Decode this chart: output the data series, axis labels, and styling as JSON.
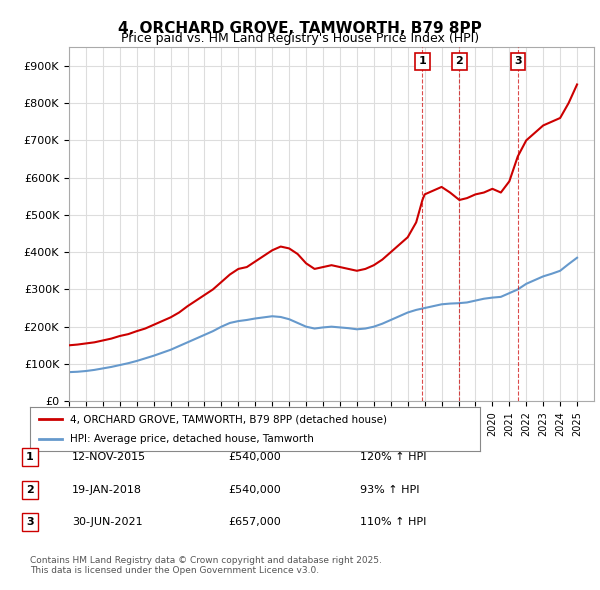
{
  "title": "4, ORCHARD GROVE, TAMWORTH, B79 8PP",
  "subtitle": "Price paid vs. HM Land Registry's House Price Index (HPI)",
  "ylabel": "",
  "background_color": "#ffffff",
  "plot_bg_color": "#ffffff",
  "grid_color": "#dddddd",
  "red_line_color": "#cc0000",
  "blue_line_color": "#6699cc",
  "transaction_line_color": "#cc0000",
  "marker_border_color": "#cc0000",
  "ylim": [
    0,
    950000
  ],
  "yticks": [
    0,
    100000,
    200000,
    300000,
    400000,
    500000,
    600000,
    700000,
    800000,
    900000
  ],
  "ytick_labels": [
    "£0",
    "£100K",
    "£200K",
    "£300K",
    "£400K",
    "£500K",
    "£600K",
    "£700K",
    "£800K",
    "£900K"
  ],
  "xlim_start": 1995.0,
  "xlim_end": 2026.0,
  "transactions": [
    {
      "year": 2015.87,
      "price": 540000,
      "label": "1",
      "pct": "120% ↑ HPI",
      "date": "12-NOV-2015"
    },
    {
      "year": 2018.05,
      "price": 540000,
      "label": "2",
      "pct": "93% ↑ HPI",
      "date": "19-JAN-2018"
    },
    {
      "year": 2021.5,
      "price": 657000,
      "label": "3",
      "pct": "110% ↑ HPI",
      "date": "30-JUN-2021"
    }
  ],
  "legend_property": "4, ORCHARD GROVE, TAMWORTH, B79 8PP (detached house)",
  "legend_hpi": "HPI: Average price, detached house, Tamworth",
  "footer_line1": "Contains HM Land Registry data © Crown copyright and database right 2025.",
  "footer_line2": "This data is licensed under the Open Government Licence v3.0.",
  "red_x": [
    1995.0,
    1995.5,
    1996.0,
    1996.5,
    1997.0,
    1997.5,
    1998.0,
    1998.5,
    1999.0,
    1999.5,
    2000.0,
    2000.5,
    2001.0,
    2001.5,
    2002.0,
    2002.5,
    2003.0,
    2003.5,
    2004.0,
    2004.5,
    2005.0,
    2005.5,
    2006.0,
    2006.5,
    2007.0,
    2007.5,
    2008.0,
    2008.5,
    2009.0,
    2009.5,
    2010.0,
    2010.5,
    2011.0,
    2011.5,
    2012.0,
    2012.5,
    2013.0,
    2013.5,
    2014.0,
    2014.5,
    2015.0,
    2015.5,
    2015.87,
    2016.0,
    2016.5,
    2017.0,
    2017.5,
    2018.05,
    2018.5,
    2019.0,
    2019.5,
    2020.0,
    2020.5,
    2021.0,
    2021.5,
    2022.0,
    2022.5,
    2023.0,
    2023.5,
    2024.0,
    2024.5,
    2025.0
  ],
  "red_y": [
    150000,
    152000,
    155000,
    158000,
    163000,
    168000,
    175000,
    180000,
    188000,
    195000,
    205000,
    215000,
    225000,
    238000,
    255000,
    270000,
    285000,
    300000,
    320000,
    340000,
    355000,
    360000,
    375000,
    390000,
    405000,
    415000,
    410000,
    395000,
    370000,
    355000,
    360000,
    365000,
    360000,
    355000,
    350000,
    355000,
    365000,
    380000,
    400000,
    420000,
    440000,
    480000,
    540000,
    555000,
    565000,
    575000,
    560000,
    540000,
    545000,
    555000,
    560000,
    570000,
    560000,
    590000,
    657000,
    700000,
    720000,
    740000,
    750000,
    760000,
    800000,
    850000
  ],
  "blue_x": [
    1995.0,
    1995.5,
    1996.0,
    1996.5,
    1997.0,
    1997.5,
    1998.0,
    1998.5,
    1999.0,
    1999.5,
    2000.0,
    2000.5,
    2001.0,
    2001.5,
    2002.0,
    2002.5,
    2003.0,
    2003.5,
    2004.0,
    2004.5,
    2005.0,
    2005.5,
    2006.0,
    2006.5,
    2007.0,
    2007.5,
    2008.0,
    2008.5,
    2009.0,
    2009.5,
    2010.0,
    2010.5,
    2011.0,
    2011.5,
    2012.0,
    2012.5,
    2013.0,
    2013.5,
    2014.0,
    2014.5,
    2015.0,
    2015.5,
    2016.0,
    2016.5,
    2017.0,
    2017.5,
    2018.0,
    2018.5,
    2019.0,
    2019.5,
    2020.0,
    2020.5,
    2021.0,
    2021.5,
    2022.0,
    2022.5,
    2023.0,
    2023.5,
    2024.0,
    2024.5,
    2025.0
  ],
  "blue_y": [
    78000,
    79000,
    81000,
    84000,
    88000,
    92000,
    97000,
    102000,
    108000,
    115000,
    122000,
    130000,
    138000,
    148000,
    158000,
    168000,
    178000,
    188000,
    200000,
    210000,
    215000,
    218000,
    222000,
    225000,
    228000,
    226000,
    220000,
    210000,
    200000,
    195000,
    198000,
    200000,
    198000,
    196000,
    193000,
    195000,
    200000,
    208000,
    218000,
    228000,
    238000,
    245000,
    250000,
    255000,
    260000,
    262000,
    263000,
    265000,
    270000,
    275000,
    278000,
    280000,
    290000,
    300000,
    315000,
    325000,
    335000,
    342000,
    350000,
    368000,
    385000
  ]
}
